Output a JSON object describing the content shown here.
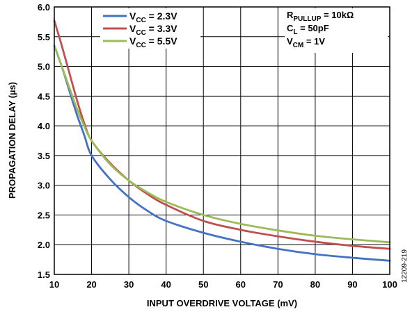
{
  "chart_data": {
    "type": "line",
    "xlabel": "INPUT OVERDRIVE VOLTAGE (mV)",
    "ylabel": "PROPAGATION DELAY (µs)",
    "xlim": [
      10,
      100
    ],
    "ylim": [
      1.5,
      6.0
    ],
    "x_ticks": [
      "10",
      "20",
      "30",
      "40",
      "50",
      "60",
      "70",
      "80",
      "90",
      "100"
    ],
    "y_ticks": [
      "1.5",
      "2.0",
      "2.5",
      "3.0",
      "3.5",
      "4.0",
      "4.5",
      "5.0",
      "5.5",
      "6.0"
    ],
    "grid": true,
    "legend_position": "top-left",
    "series": [
      {
        "name": "VCC = 2.3V",
        "label": {
          "main": "V",
          "sub": "CC",
          "rest": " = 2.3V"
        },
        "color": "#4472C4",
        "x": [
          10,
          12,
          14,
          16,
          18,
          20,
          25,
          30,
          35,
          40,
          50,
          60,
          70,
          80,
          90,
          100
        ],
        "y": [
          5.35,
          5.0,
          4.6,
          4.2,
          3.85,
          3.5,
          3.1,
          2.8,
          2.57,
          2.4,
          2.2,
          2.05,
          1.93,
          1.84,
          1.78,
          1.73
        ]
      },
      {
        "name": "VCC = 3.3V",
        "label": {
          "main": "V",
          "sub": "CC",
          "rest": " = 3.3V"
        },
        "color": "#C0504D",
        "x": [
          10,
          12,
          14,
          16,
          18,
          20,
          25,
          30,
          35,
          40,
          50,
          60,
          70,
          80,
          90,
          100
        ],
        "y": [
          5.77,
          5.35,
          4.9,
          4.45,
          4.05,
          3.75,
          3.37,
          3.08,
          2.85,
          2.67,
          2.4,
          2.25,
          2.14,
          2.05,
          1.98,
          1.93
        ]
      },
      {
        "name": "VCC = 5.5V",
        "label": {
          "main": "V",
          "sub": "CC",
          "rest": " = 5.5V"
        },
        "color": "#9BBB59",
        "x": [
          10,
          12,
          14,
          16,
          18,
          20,
          25,
          30,
          35,
          40,
          50,
          60,
          70,
          80,
          90,
          100
        ],
        "y": [
          5.35,
          5.0,
          4.65,
          4.3,
          4.0,
          3.75,
          3.35,
          3.08,
          2.88,
          2.72,
          2.5,
          2.35,
          2.24,
          2.15,
          2.09,
          2.04
        ]
      }
    ],
    "annotations": [
      {
        "main": "R",
        "sub": "PULLUP",
        "rest": " = 10kΩ"
      },
      {
        "main": "C",
        "sub": "L",
        "rest": " = 50pF"
      },
      {
        "main": "V",
        "sub": "CM",
        "rest": " = 1V"
      }
    ]
  },
  "figure_id": "12209-219"
}
